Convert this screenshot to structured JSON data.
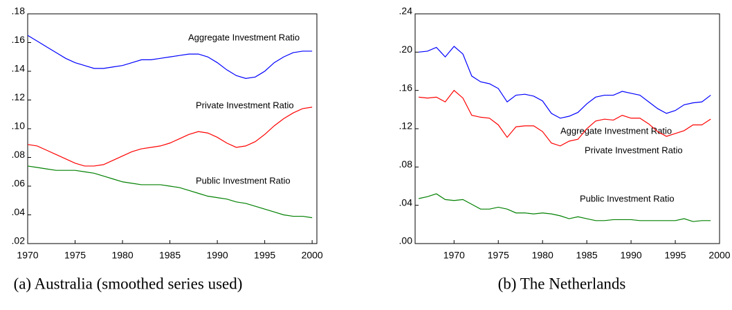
{
  "chart_data": [
    {
      "type": "line",
      "title": "(a) Australia (smoothed series used)",
      "x": [
        1970,
        1971,
        1972,
        1973,
        1974,
        1975,
        1976,
        1977,
        1978,
        1979,
        1980,
        1981,
        1982,
        1983,
        1984,
        1985,
        1986,
        1987,
        1988,
        1989,
        1990,
        1991,
        1992,
        1993,
        1994,
        1995,
        1996,
        1997,
        1998,
        1999,
        2000
      ],
      "xlim": [
        1970,
        2000.5
      ],
      "xticks": [
        1970,
        1975,
        1980,
        1985,
        1990,
        1995,
        2000
      ],
      "ylim": [
        0.02,
        0.18
      ],
      "yticks": [
        {
          "value": 0.02,
          "label": ".02"
        },
        {
          "value": 0.04,
          "label": ".04"
        },
        {
          "value": 0.06,
          "label": ".06"
        },
        {
          "value": 0.08,
          "label": ".08"
        },
        {
          "value": 0.1,
          "label": ".10"
        },
        {
          "value": 0.12,
          "label": ".12"
        },
        {
          "value": 0.14,
          "label": ".14"
        },
        {
          "value": 0.16,
          "label": ".16"
        },
        {
          "value": 0.18,
          "label": ".18"
        }
      ],
      "series": [
        {
          "name": "Aggregate Investment Ratio",
          "color": "#0000ff",
          "values": [
            0.165,
            0.161,
            0.157,
            0.153,
            0.149,
            0.146,
            0.144,
            0.142,
            0.142,
            0.143,
            0.144,
            0.146,
            0.148,
            0.148,
            0.149,
            0.15,
            0.151,
            0.152,
            0.152,
            0.15,
            0.146,
            0.141,
            0.137,
            0.135,
            0.136,
            0.14,
            0.146,
            0.15,
            0.153,
            0.154,
            0.154
          ]
        },
        {
          "name": "Private Investment Ratio",
          "color": "#ff0000",
          "values": [
            0.089,
            0.088,
            0.085,
            0.082,
            0.079,
            0.076,
            0.074,
            0.074,
            0.075,
            0.078,
            0.081,
            0.084,
            0.086,
            0.087,
            0.088,
            0.09,
            0.093,
            0.096,
            0.098,
            0.097,
            0.094,
            0.09,
            0.087,
            0.088,
            0.091,
            0.096,
            0.102,
            0.107,
            0.111,
            0.114,
            0.115
          ]
        },
        {
          "name": "Public Investment Ratio",
          "color": "#008000",
          "values": [
            0.074,
            0.073,
            0.072,
            0.071,
            0.071,
            0.071,
            0.07,
            0.069,
            0.067,
            0.065,
            0.063,
            0.062,
            0.061,
            0.061,
            0.061,
            0.06,
            0.059,
            0.057,
            0.055,
            0.053,
            0.052,
            0.051,
            0.049,
            0.048,
            0.046,
            0.044,
            0.042,
            0.04,
            0.039,
            0.039,
            0.038
          ]
        }
      ]
    },
    {
      "type": "line",
      "title": "(b) The Netherlands",
      "x": [
        1966,
        1967,
        1968,
        1969,
        1970,
        1971,
        1972,
        1973,
        1974,
        1975,
        1976,
        1977,
        1978,
        1979,
        1980,
        1981,
        1982,
        1983,
        1984,
        1985,
        1986,
        1987,
        1988,
        1989,
        1990,
        1991,
        1992,
        1993,
        1994,
        1995,
        1996,
        1997,
        1998,
        1999
      ],
      "xlim": [
        1965.6,
        2000
      ],
      "xticks": [
        1970,
        1975,
        1980,
        1985,
        1990,
        1995,
        2000
      ],
      "ylim": [
        0,
        0.24
      ],
      "yticks": [
        {
          "value": 0,
          "label": ".00"
        },
        {
          "value": 0.04,
          "label": ".04"
        },
        {
          "value": 0.08,
          "label": ".08"
        },
        {
          "value": 0.12,
          "label": ".12"
        },
        {
          "value": 0.16,
          "label": ".16"
        },
        {
          "value": 0.2,
          "label": ".20"
        },
        {
          "value": 0.24,
          "label": ".24"
        }
      ],
      "series": [
        {
          "name": "Aggregate Investment Ratio",
          "color": "#0000ff",
          "values": [
            0.2,
            0.201,
            0.205,
            0.195,
            0.206,
            0.198,
            0.175,
            0.169,
            0.167,
            0.162,
            0.148,
            0.155,
            0.156,
            0.154,
            0.149,
            0.136,
            0.131,
            0.133,
            0.137,
            0.146,
            0.153,
            0.155,
            0.155,
            0.159,
            0.157,
            0.155,
            0.148,
            0.141,
            0.136,
            0.139,
            0.145,
            0.147,
            0.148,
            0.155
          ]
        },
        {
          "name": "Private Investment Ratio",
          "color": "#ff0000",
          "values": [
            0.153,
            0.152,
            0.153,
            0.148,
            0.16,
            0.152,
            0.134,
            0.132,
            0.131,
            0.124,
            0.111,
            0.122,
            0.123,
            0.123,
            0.117,
            0.105,
            0.102,
            0.107,
            0.109,
            0.12,
            0.128,
            0.13,
            0.129,
            0.134,
            0.131,
            0.131,
            0.125,
            0.117,
            0.112,
            0.115,
            0.118,
            0.124,
            0.124,
            0.13
          ]
        },
        {
          "name": "Public Investment Ratio",
          "color": "#008000",
          "values": [
            0.047,
            0.049,
            0.052,
            0.046,
            0.045,
            0.046,
            0.041,
            0.036,
            0.036,
            0.038,
            0.036,
            0.032,
            0.032,
            0.031,
            0.032,
            0.031,
            0.029,
            0.026,
            0.028,
            0.026,
            0.024,
            0.024,
            0.025,
            0.025,
            0.025,
            0.024,
            0.024,
            0.024,
            0.024,
            0.024,
            0.026,
            0.023,
            0.024,
            0.024
          ]
        }
      ]
    }
  ]
}
